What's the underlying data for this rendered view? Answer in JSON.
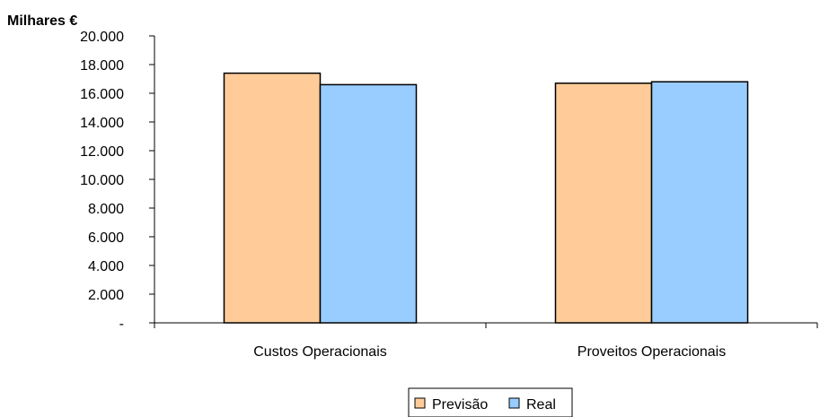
{
  "chart_data": {
    "type": "bar",
    "title": "",
    "ylabel": "Milhares €",
    "xlabel": "",
    "categories": [
      "Custos Operacionais",
      "Proveitos Operacionais"
    ],
    "series": [
      {
        "name": "Previsão",
        "values": [
          17400,
          16700
        ],
        "color": "#FFCC99"
      },
      {
        "name": "Real",
        "values": [
          16600,
          16800
        ],
        "color": "#99CCFF"
      }
    ],
    "ylim": [
      0,
      20000
    ],
    "yticks": [
      0,
      2000,
      4000,
      6000,
      8000,
      10000,
      12000,
      14000,
      16000,
      18000,
      20000
    ],
    "ytick_labels": [
      "-",
      "2.000",
      "4.000",
      "6.000",
      "8.000",
      "10.000",
      "12.000",
      "14.000",
      "16.000",
      "18.000",
      "20.000"
    ],
    "grid": false,
    "legend_position": "bottom"
  }
}
